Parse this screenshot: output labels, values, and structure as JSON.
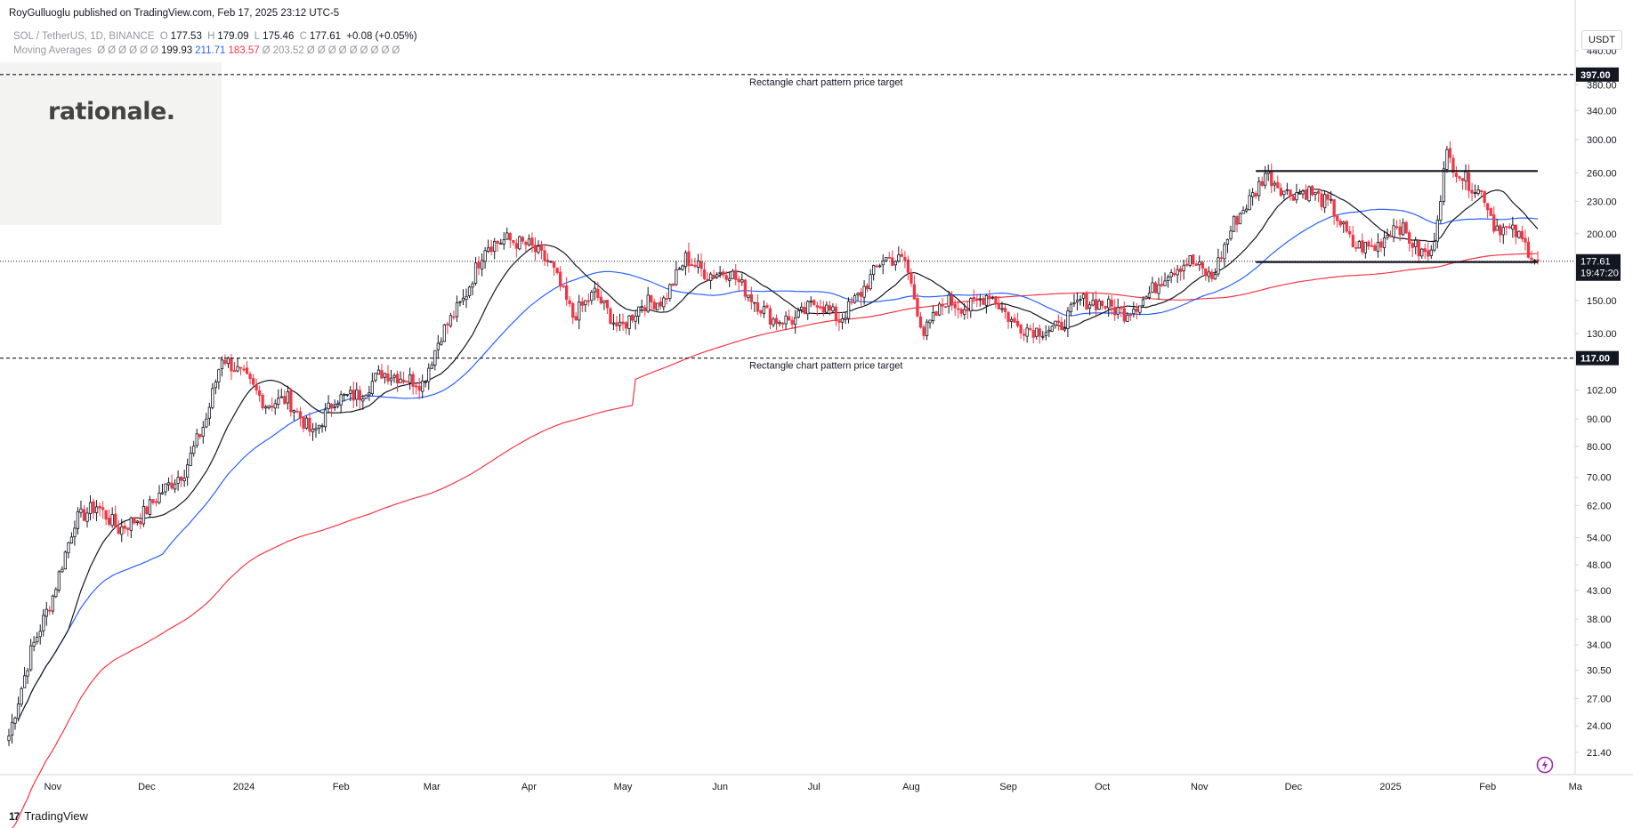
{
  "header": {
    "publisher_line": "RoyGulluoglu published on TradingView.com, Feb 17, 2025 23:12 UTC-5",
    "symbol_line": "SOL / TetherUS, 1D, BINANCE",
    "ohlc": {
      "o_label": "O",
      "o": "177.53",
      "h_label": "H",
      "h": "179.09",
      "l_label": "L",
      "l": "175.46",
      "c_label": "C",
      "c": "177.61",
      "change": "+0.08 (+0.05%)"
    },
    "ma_label": "Moving Averages",
    "ma_values": [
      "Ø",
      "Ø",
      "Ø",
      "Ø",
      "Ø",
      "Ø",
      "199.93",
      "211.71",
      "183.57",
      "Ø",
      "203.52",
      "Ø",
      "Ø",
      "Ø",
      "Ø",
      "Ø",
      "Ø",
      "Ø",
      "Ø",
      "Ø"
    ]
  },
  "watermark": {
    "logo_text": "rationale."
  },
  "footer": {
    "brand": "TradingView",
    "mark": "17"
  },
  "currency_button": "USDT",
  "colors": {
    "up": "#ffffff",
    "down": "#f23645",
    "ma_black": "#131722",
    "ma_blue": "#2962ff",
    "ma_red": "#f23645",
    "ma_gray": "#b2b5be",
    "grid_text": "#131722"
  },
  "chart_data": {
    "type": "candlestick",
    "symbol": "SOL / TetherUS",
    "interval": "1D",
    "exchange": "BINANCE",
    "scale": "log",
    "ylim": [
      20,
      440
    ],
    "x_tick_labels": [
      "Nov",
      "Dec",
      "2024",
      "Feb",
      "Mar",
      "Apr",
      "May",
      "Jun",
      "Jul",
      "Aug",
      "Sep",
      "Oct",
      "Nov",
      "Dec",
      "2025",
      "Feb",
      "Ma"
    ],
    "y_tick_labels": [
      "440.00",
      "380.00",
      "340.00",
      "300.00",
      "260.00",
      "230.00",
      "200.00",
      "150.00",
      "130.00",
      "102.00",
      "90.00",
      "80.00",
      "70.00",
      "62.00",
      "54.00",
      "48.00",
      "43.00",
      "38.00",
      "34.00",
      "30.50",
      "27.00",
      "24.00",
      "21.40"
    ],
    "y_tick_values": [
      440,
      380,
      340,
      300,
      260,
      230,
      200,
      150,
      130,
      102,
      90,
      80,
      70,
      62,
      54,
      48,
      43,
      38,
      34,
      30.5,
      27,
      24,
      21.4
    ],
    "last_price_label": "177.61",
    "countdown_label": "19:47:20",
    "horizontal_lines": [
      {
        "value": 397,
        "label": "397.00",
        "annotation": "Rectangle chart pattern price target"
      },
      {
        "value": 117,
        "label": "117.00",
        "annotation": "Rectangle chart pattern price target"
      }
    ],
    "rectangle_pattern": {
      "top": 262,
      "bottom": 177,
      "start": "2024-11-19",
      "end": "2025-02-17"
    },
    "price_path_approx": [
      [
        "2023-10-18",
        23
      ],
      [
        "2023-10-25",
        33
      ],
      [
        "2023-11-01",
        42
      ],
      [
        "2023-11-08",
        58
      ],
      [
        "2023-11-15",
        62
      ],
      [
        "2023-11-22",
        56
      ],
      [
        "2023-11-29",
        59
      ],
      [
        "2023-12-06",
        66
      ],
      [
        "2023-12-13",
        72
      ],
      [
        "2023-12-20",
        90
      ],
      [
        "2023-12-25",
        118
      ],
      [
        "2024-01-01",
        108
      ],
      [
        "2024-01-08",
        96
      ],
      [
        "2024-01-15",
        98
      ],
      [
        "2024-01-23",
        84
      ],
      [
        "2024-01-30",
        98
      ],
      [
        "2024-02-07",
        100
      ],
      [
        "2024-02-14",
        110
      ],
      [
        "2024-02-20",
        108
      ],
      [
        "2024-02-27",
        105
      ],
      [
        "2024-03-04",
        130
      ],
      [
        "2024-03-11",
        150
      ],
      [
        "2024-03-18",
        190
      ],
      [
        "2024-03-25",
        195
      ],
      [
        "2024-04-01",
        190
      ],
      [
        "2024-04-08",
        175
      ],
      [
        "2024-04-15",
        140
      ],
      [
        "2024-04-22",
        155
      ],
      [
        "2024-04-30",
        132
      ],
      [
        "2024-05-07",
        148
      ],
      [
        "2024-05-14",
        150
      ],
      [
        "2024-05-21",
        180
      ],
      [
        "2024-05-28",
        168
      ],
      [
        "2024-06-04",
        170
      ],
      [
        "2024-06-11",
        152
      ],
      [
        "2024-06-18",
        138
      ],
      [
        "2024-06-25",
        138
      ],
      [
        "2024-07-02",
        150
      ],
      [
        "2024-07-09",
        138
      ],
      [
        "2024-07-16",
        155
      ],
      [
        "2024-07-23",
        180
      ],
      [
        "2024-07-30",
        178
      ],
      [
        "2024-08-05",
        130
      ],
      [
        "2024-08-12",
        150
      ],
      [
        "2024-08-19",
        145
      ],
      [
        "2024-08-26",
        155
      ],
      [
        "2024-09-03",
        135
      ],
      [
        "2024-09-10",
        132
      ],
      [
        "2024-09-17",
        133
      ],
      [
        "2024-09-24",
        150
      ],
      [
        "2024-10-01",
        148
      ],
      [
        "2024-10-08",
        142
      ],
      [
        "2024-10-15",
        152
      ],
      [
        "2024-10-22",
        170
      ],
      [
        "2024-10-29",
        178
      ],
      [
        "2024-11-05",
        165
      ],
      [
        "2024-11-12",
        210
      ],
      [
        "2024-11-19",
        240
      ],
      [
        "2024-11-22",
        260
      ],
      [
        "2024-11-29",
        238
      ],
      [
        "2024-12-06",
        240
      ],
      [
        "2024-12-13",
        225
      ],
      [
        "2024-12-20",
        190
      ],
      [
        "2024-12-27",
        188
      ],
      [
        "2025-01-03",
        210
      ],
      [
        "2025-01-10",
        185
      ],
      [
        "2025-01-14",
        182
      ],
      [
        "2025-01-18",
        260
      ],
      [
        "2025-01-19",
        280
      ],
      [
        "2025-01-24",
        255
      ],
      [
        "2025-01-31",
        235
      ],
      [
        "2025-02-03",
        208
      ],
      [
        "2025-02-10",
        200
      ],
      [
        "2025-02-17",
        177.61
      ]
    ],
    "ma_legend": {
      "ma_20": "199.93",
      "ma_50": "211.71",
      "ma_200": "183.57",
      "other": "203.52"
    }
  }
}
